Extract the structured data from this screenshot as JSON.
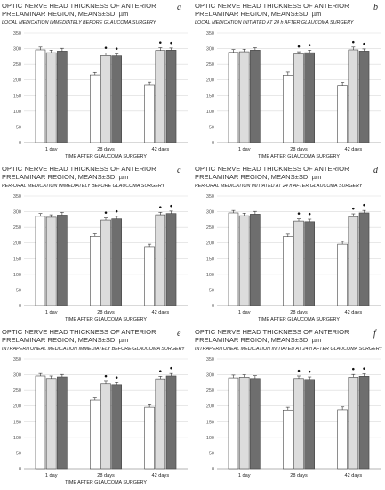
{
  "colors": {
    "bar_series_1": "#ffffff",
    "bar_series_2": "#dcdcdc",
    "bar_series_3": "#6e6e6e",
    "bar_stroke": "#444444",
    "grid": "#d9d9d9"
  },
  "chart_data": [
    {
      "type": "bar",
      "panel_letter": "a",
      "title": "OPTIC NERVE HEAD THICKNESS OF ANTERIOR PRELAMINAR REGION, MEANS±SD, µm",
      "subtitle": "LOCAL MEDICATION IMMEDIATELY BEFORE GLAUCOMA SURGERY",
      "xlabel": "TIME AFTER GLAUCOMA SURGERY",
      "categories": [
        "1 day",
        "28 days",
        "42 days"
      ],
      "ylim": [
        0,
        350
      ],
      "yticks": [
        0,
        50,
        100,
        150,
        200,
        250,
        300,
        350
      ],
      "grid": true,
      "series": [
        {
          "values": [
            296,
            216,
            185
          ],
          "errors": [
            9,
            8,
            8
          ],
          "stars": [
            false,
            false,
            false
          ]
        },
        {
          "values": [
            287,
            278,
            294
          ],
          "errors": [
            8,
            8,
            9
          ],
          "stars": [
            false,
            true,
            true
          ]
        },
        {
          "values": [
            292,
            277,
            295
          ],
          "errors": [
            9,
            6,
            7
          ],
          "stars": [
            false,
            true,
            true
          ]
        }
      ]
    },
    {
      "type": "bar",
      "panel_letter": "b",
      "title": "OPTIC NERVE HEAD THICKNESS OF ANTERIOR PRELAMINAR REGION, MEANS±SD, µm",
      "subtitle": "LOCAL MEDICATION INITIATED AT 24 h AFTER GLAUCOMA SURGERY",
      "xlabel": "TIME AFTER GLAUCOMA SURGERY",
      "categories": [
        "1 day",
        "28 days",
        "42 days"
      ],
      "ylim": [
        0,
        350
      ],
      "yticks": [
        0,
        50,
        100,
        150,
        200,
        250,
        300,
        350
      ],
      "grid": true,
      "series": [
        {
          "values": [
            288,
            215,
            183
          ],
          "errors": [
            9,
            10,
            9
          ],
          "stars": [
            false,
            false,
            false
          ]
        },
        {
          "values": [
            290,
            283,
            296
          ],
          "errors": [
            8,
            7,
            9
          ],
          "stars": [
            false,
            true,
            true
          ]
        },
        {
          "values": [
            295,
            287,
            292
          ],
          "errors": [
            8,
            8,
            7
          ],
          "stars": [
            false,
            true,
            true
          ]
        }
      ]
    },
    {
      "type": "bar",
      "panel_letter": "c",
      "title": "OPTIC NERVE HEAD THICKNESS OF ANTERIOR PRELAMINAR REGION, MEANS±SD, µm",
      "subtitle": "PER-ORAL MEDICATION IMMEDIATELY BEFORE GLAUCOMA SURGERY",
      "xlabel": "TIME AFTER GLAUCOMA SURGERY",
      "categories": [
        "1 day",
        "28 days",
        "42 days"
      ],
      "ylim": [
        0,
        350
      ],
      "yticks": [
        0,
        50,
        100,
        150,
        200,
        250,
        300,
        350
      ],
      "grid": true,
      "series": [
        {
          "values": [
            285,
            221,
            188
          ],
          "errors": [
            9,
            8,
            8
          ],
          "stars": [
            false,
            false,
            false
          ]
        },
        {
          "values": [
            282,
            273,
            290
          ],
          "errors": [
            8,
            7,
            8
          ],
          "stars": [
            false,
            true,
            true
          ]
        },
        {
          "values": [
            289,
            277,
            294
          ],
          "errors": [
            9,
            8,
            8
          ],
          "stars": [
            false,
            true,
            true
          ]
        }
      ]
    },
    {
      "type": "bar",
      "panel_letter": "d",
      "title": "OPTIC NERVE HEAD THICKNESS OF ANTERIOR PRELAMINAR REGION, MEANS±SD, µm",
      "subtitle": "PER-ORAL MEDICATION INITIATED AT 24 h AFTER GLAUCOMA SURGERY",
      "xlabel": "TIME AFTER GLAUCOMA SURGERY",
      "categories": [
        "1 day",
        "28 days",
        "42 days"
      ],
      "ylim": [
        0,
        350
      ],
      "yticks": [
        0,
        50,
        100,
        150,
        200,
        250,
        300,
        350
      ],
      "grid": true,
      "series": [
        {
          "values": [
            296,
            220,
            196
          ],
          "errors": [
            8,
            8,
            9
          ],
          "stars": [
            false,
            false,
            false
          ]
        },
        {
          "values": [
            287,
            270,
            284
          ],
          "errors": [
            8,
            7,
            9
          ],
          "stars": [
            false,
            true,
            true
          ]
        },
        {
          "values": [
            292,
            268,
            296
          ],
          "errors": [
            9,
            8,
            8
          ],
          "stars": [
            false,
            true,
            true
          ]
        }
      ]
    },
    {
      "type": "bar",
      "panel_letter": "e",
      "title": "OPTIC NERVE HEAD THICKNESS OF ANTERIOR PRELAMINAR REGION, MEANS±SD, µm",
      "subtitle": "INTRAPERITONEAL MEDICATION IMMEDIATELY BEFORE GLAUCOMA SURGERY",
      "xlabel": "TIME AFTER GLAUCOMA SURGERY",
      "categories": [
        "1 day",
        "28 days",
        "42 days"
      ],
      "ylim": [
        0,
        350
      ],
      "yticks": [
        0,
        50,
        100,
        150,
        200,
        250,
        300,
        350
      ],
      "grid": true,
      "series": [
        {
          "values": [
            296,
            219,
            196
          ],
          "errors": [
            8,
            7,
            8
          ],
          "stars": [
            false,
            false,
            false
          ]
        },
        {
          "values": [
            288,
            271,
            287
          ],
          "errors": [
            8,
            8,
            8
          ],
          "stars": [
            false,
            true,
            true
          ]
        },
        {
          "values": [
            293,
            268,
            296
          ],
          "errors": [
            8,
            7,
            8
          ],
          "stars": [
            false,
            true,
            true
          ]
        }
      ]
    },
    {
      "type": "bar",
      "panel_letter": "f",
      "title": "OPTIC NERVE HEAD THICKNESS OF ANTERIOR PRELAMINAR REGION, MEANS±SD, µm",
      "subtitle": "INTRAPERITONEAL MEDICATION INITIATED AT 24 h AFTER GLAUCOMA SURGERY",
      "xlabel": "",
      "categories": [
        "1 day",
        "28 days",
        "42 days"
      ],
      "ylim": [
        0,
        350
      ],
      "yticks": [
        0,
        50,
        100,
        150,
        200,
        250,
        300,
        350
      ],
      "grid": true,
      "series": [
        {
          "values": [
            290,
            187,
            188
          ],
          "errors": [
            9,
            9,
            9
          ],
          "stars": [
            false,
            false,
            false
          ]
        },
        {
          "values": [
            292,
            288,
            292
          ],
          "errors": [
            8,
            8,
            9
          ],
          "stars": [
            false,
            true,
            true
          ]
        },
        {
          "values": [
            288,
            285,
            295
          ],
          "errors": [
            9,
            8,
            8
          ],
          "stars": [
            false,
            true,
            true
          ]
        }
      ]
    }
  ]
}
